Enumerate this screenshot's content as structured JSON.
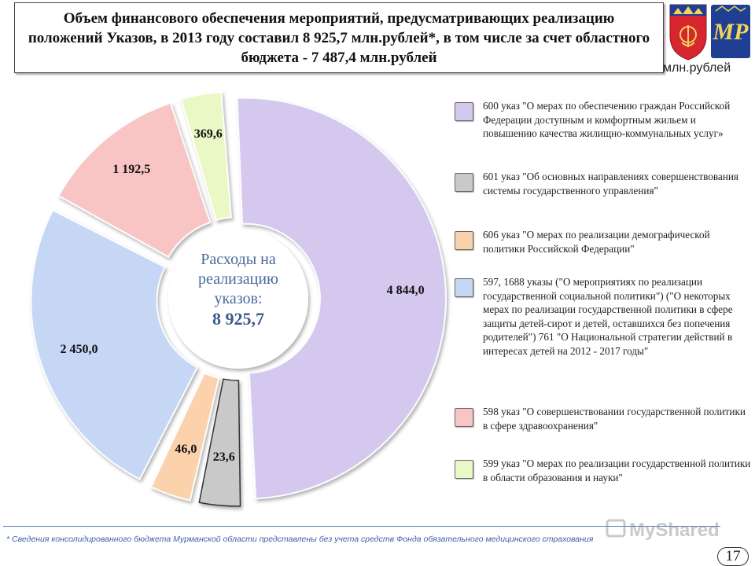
{
  "header": {
    "title": "Объем финансового обеспечения мероприятий, предусматривающих реализацию положений Указов, в 2013 году составил  8 925,7 млн.рублей*, в том числе за счет областного бюджета - 7 487,4 млн.рублей",
    "unit": "млн.рублей"
  },
  "center": {
    "label": "Расходы на реализацию указов:",
    "total": "8 925,7"
  },
  "chart_data": {
    "type": "pie",
    "slices": [
      {
        "id": "600",
        "value": 4844.0,
        "label": "4 844,0",
        "color": "#d4c8ee"
      },
      {
        "id": "601",
        "value": 23.6,
        "label": "23,6",
        "color": "#c9c9c9"
      },
      {
        "id": "606",
        "value": 46.0,
        "label": "46,0",
        "color": "#fbd2ac"
      },
      {
        "id": "597",
        "value": 2450.0,
        "label": "2 450,0",
        "color": "#c5d7f5"
      },
      {
        "id": "598",
        "value": 1192.5,
        "label": "1 192,5",
        "color": "#f8c4c4"
      },
      {
        "id": "599",
        "value": 369.6,
        "label": "369,6",
        "color": "#e9f8c4"
      }
    ],
    "legend": [
      {
        "text": "600 указ \"О мерах по обеспечению граждан Российской Федерации доступным и комфортным жильем и повышению качества жилищно-коммунальных услуг»",
        "color": "#d4c8ee"
      },
      {
        "text": "601 указ \"Об основных направлениях совершенствования системы государственного управления\"",
        "color": "#c9c9c9"
      },
      {
        "text": "606 указ \"О мерах по реализации демографической политики Российской Федерации\"",
        "color": "#fbd2ac"
      },
      {
        "text": "597, 1688 указы (\"О мероприятиях по реализации государственной социальной политики\") (\"О некоторых мерах по реализации государственной политики в сфере защиты детей-сирот и детей, оставшихся без попечения родителей\") 761 \"О Национальной стратегии действий в интересах детей на 2012 - 2017 годы\"",
        "color": "#c5d7f5"
      },
      {
        "text": "598 указ \"О совершенствовании государственной политики в сфере здравоохранения\"",
        "color": "#f8c4c4"
      },
      {
        "text": "599 указ \"О мерах по реализации государственной политики в области образования и науки\"",
        "color": "#e9f8c4"
      }
    ],
    "legend_position": "right"
  },
  "footer": {
    "note": "* Сведения консолидированного бюджета Мурманской области представлены без учета средств Фонда обязательного медицинского страхования",
    "page": "17",
    "watermark": "MyShared"
  },
  "emblems": [
    {
      "name": "murmansk-region-coat-of-arms",
      "color": "#d7262f"
    },
    {
      "name": "organization-logo-mp",
      "color": "#1f3f93"
    }
  ]
}
